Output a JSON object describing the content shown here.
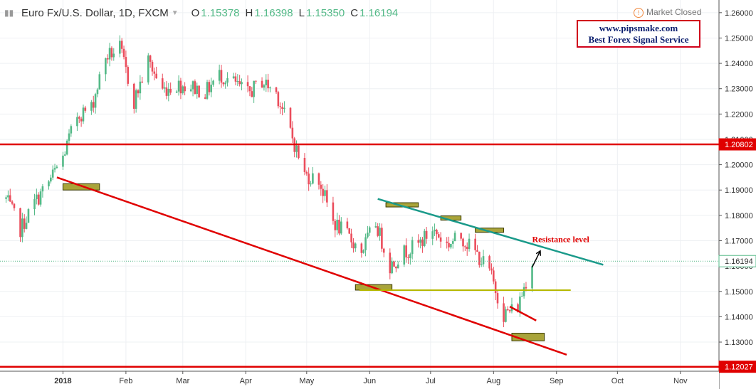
{
  "header": {
    "symbol": "Euro Fx/U.S. Dollar, 1D, FXCM",
    "o_label": "O",
    "o_value": "1.15378",
    "h_label": "H",
    "h_value": "1.16398",
    "l_label": "L",
    "l_value": "1.15350",
    "c_label": "C",
    "c_value": "1.16194",
    "status": "Market Closed"
  },
  "watermark": {
    "line1": "www.pipsmake.com",
    "line2": "Best Forex Signal Service"
  },
  "chart_data": {
    "type": "candlestick",
    "title": "Euro Fx/U.S. Dollar, 1D, FXCM",
    "ylim": [
      1.1185,
      1.265
    ],
    "y_ticks": [
      "1.26000",
      "1.25000",
      "1.24000",
      "1.23000",
      "1.22000",
      "1.21000",
      "1.20000",
      "1.19000",
      "1.18000",
      "1.17000",
      "1.16000",
      "1.15000",
      "1.14000",
      "1.13000"
    ],
    "x_ticks": [
      {
        "date": "2018-01-01",
        "label": "2018",
        "bold": true
      },
      {
        "date": "2018-02-01",
        "label": "Feb"
      },
      {
        "date": "2018-03-01",
        "label": "Mar"
      },
      {
        "date": "2018-04-01",
        "label": "Apr"
      },
      {
        "date": "2018-05-01",
        "label": "May"
      },
      {
        "date": "2018-06-01",
        "label": "Jun"
      },
      {
        "date": "2018-07-01",
        "label": "Jul"
      },
      {
        "date": "2018-08-01",
        "label": "Aug"
      },
      {
        "date": "2018-09-01",
        "label": "Sep"
      },
      {
        "date": "2018-10-01",
        "label": "Oct"
      },
      {
        "date": "2018-11-01",
        "label": "Nov"
      }
    ],
    "x_range": [
      "2017-12-01",
      "2018-11-20"
    ],
    "grid": true,
    "closes": [
      [
        "2017-12-04",
        1.1865
      ],
      [
        "2017-12-11",
        1.1745
      ],
      [
        "2017-12-18",
        1.185
      ],
      [
        "2017-12-25",
        1.193
      ],
      [
        "2018-01-01",
        1.203
      ],
      [
        "2018-01-08",
        1.2195
      ],
      [
        "2018-01-15",
        1.2225
      ],
      [
        "2018-01-22",
        1.2425
      ],
      [
        "2018-01-29",
        1.246
      ],
      [
        "2018-02-05",
        1.225
      ],
      [
        "2018-02-12",
        1.241
      ],
      [
        "2018-02-19",
        1.2295
      ],
      [
        "2018-02-26",
        1.2315
      ],
      [
        "2018-03-05",
        1.231
      ],
      [
        "2018-03-12",
        1.2285
      ],
      [
        "2018-03-19",
        1.2355
      ],
      [
        "2018-03-26",
        1.2325
      ],
      [
        "2018-04-02",
        1.228
      ],
      [
        "2018-04-09",
        1.233
      ],
      [
        "2018-04-16",
        1.2285
      ],
      [
        "2018-04-23",
        1.213
      ],
      [
        "2018-04-30",
        1.196
      ],
      [
        "2018-05-07",
        1.194
      ],
      [
        "2018-05-14",
        1.1775
      ],
      [
        "2018-05-21",
        1.172
      ],
      [
        "2018-05-28",
        1.166
      ],
      [
        "2018-06-04",
        1.177
      ],
      [
        "2018-06-11",
        1.16
      ],
      [
        "2018-06-18",
        1.1655
      ],
      [
        "2018-06-25",
        1.1685
      ],
      [
        "2018-07-02",
        1.1745
      ],
      [
        "2018-07-09",
        1.1685
      ],
      [
        "2018-07-16",
        1.1715
      ],
      [
        "2018-07-23",
        1.1655
      ],
      [
        "2018-07-30",
        1.158
      ],
      [
        "2018-08-06",
        1.141
      ],
      [
        "2018-08-13",
        1.144
      ],
      [
        "2018-08-20",
        1.1622
      ]
    ],
    "annotations": [
      {
        "type": "horizontal",
        "price": 1.20802,
        "label": "1.20802",
        "color": "#e00000"
      },
      {
        "type": "horizontal",
        "price": 1.12027,
        "label": "1.12027",
        "color": "#e00000"
      },
      {
        "type": "current-price",
        "price": 1.16194,
        "label": "1.16194"
      },
      {
        "type": "trendline",
        "color": "#e00000",
        "from": [
          "2017-12-29",
          1.195
        ],
        "to": [
          "2018-09-06",
          1.125
        ]
      },
      {
        "type": "trendline",
        "color": "#1a9a8a",
        "from": [
          "2018-06-05",
          1.1865
        ],
        "to": [
          "2018-09-24",
          1.1605
        ]
      },
      {
        "type": "horizontal-segment",
        "color": "#b5b800",
        "price": 1.1505,
        "from": "2018-05-27",
        "to": "2018-09-08"
      },
      {
        "type": "trendline",
        "color": "#e00000",
        "from": [
          "2018-08-09",
          1.144
        ],
        "to": [
          "2018-08-22",
          1.1385
        ]
      },
      {
        "type": "text",
        "text": "Resistance level",
        "color": "#e00000",
        "at": [
          "2018-08-20",
          1.1695
        ]
      },
      {
        "type": "arrow",
        "color": "#000000",
        "from": [
          "2018-08-20",
          1.1595
        ],
        "to": [
          "2018-08-24",
          1.166
        ]
      }
    ],
    "boxes": [
      {
        "from": "2018-01-01",
        "to": "2018-01-19",
        "price_top": 1.1925,
        "price_bottom": 1.19
      },
      {
        "from": "2018-05-25",
        "to": "2018-06-12",
        "price_top": 1.1527,
        "price_bottom": 1.1505
      },
      {
        "from": "2018-06-09",
        "to": "2018-06-25",
        "price_top": 1.185,
        "price_bottom": 1.1835
      },
      {
        "from": "2018-07-06",
        "to": "2018-07-16",
        "price_top": 1.1798,
        "price_bottom": 1.1785
      },
      {
        "from": "2018-07-23",
        "to": "2018-08-06",
        "price_top": 1.175,
        "price_bottom": 1.1735
      },
      {
        "from": "2018-08-10",
        "to": "2018-08-26",
        "price_top": 1.1335,
        "price_bottom": 1.1305
      }
    ]
  }
}
